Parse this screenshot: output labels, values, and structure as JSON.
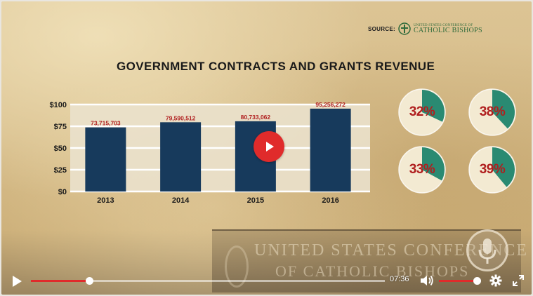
{
  "source": {
    "label": "SOURCE:",
    "org_top": "UNITED STATES CONFERENCE OF",
    "org_bottom": "CATHOLIC BISHOPS"
  },
  "chart_data": {
    "type": "bar",
    "title": "GOVERNMENT CONTRACTS AND GRANTS REVENUE",
    "categories": [
      "2013",
      "2014",
      "2015",
      "2016"
    ],
    "values": [
      73715703,
      79590512,
      80733062,
      95256272
    ],
    "data_labels": [
      "73,715,703",
      "79,590,512",
      "80,733,062",
      "95,256,272"
    ],
    "yticks": [
      "$0",
      "$25",
      "$50",
      "$75",
      "$100"
    ],
    "ytick_values": [
      0,
      25000000,
      50000000,
      75000000,
      100000000
    ],
    "ylim": [
      0,
      100000000
    ],
    "grid": true,
    "xlabel": "",
    "ylabel": "",
    "bar_color": "#173a5c",
    "label_color": "#b01e1e"
  },
  "pies": [
    {
      "label": "32%",
      "value": 32
    },
    {
      "label": "38%",
      "value": 38
    },
    {
      "label": "33%",
      "value": 33
    },
    {
      "label": "39%",
      "value": 39
    }
  ],
  "pie_colors": {
    "fill": "#2a8a72",
    "rest": "#f3ead2",
    "label": "#b01e1e"
  },
  "watermark": {
    "line1": "UNITED STATES CONFERENCE",
    "line2": "OF CATHOLIC BISHOPS"
  },
  "player": {
    "time": "07:36",
    "progress": 0.165,
    "volume": 1.0,
    "accent": "#e02b2b"
  }
}
